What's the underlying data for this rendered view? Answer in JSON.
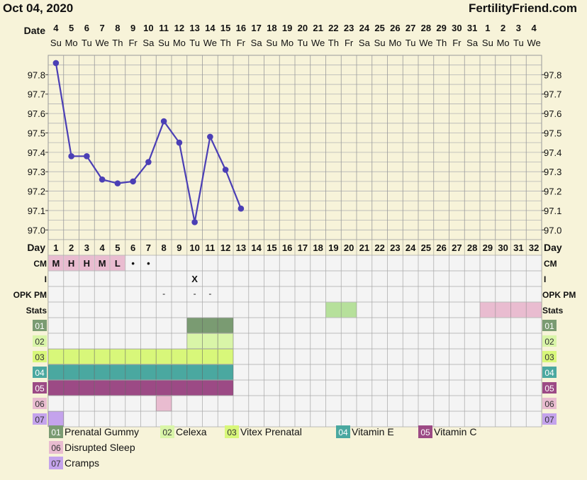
{
  "header": {
    "date": "Oct 04, 2020",
    "site": "FertilityFriend.com"
  },
  "chart_data": {
    "type": "line",
    "title": "",
    "row_labels": {
      "date": "Date",
      "day": "Day",
      "cm": "CM",
      "i": "I",
      "opk": "OPK PM",
      "stats": "Stats"
    },
    "date_numbers": [
      "4",
      "5",
      "6",
      "7",
      "8",
      "9",
      "10",
      "11",
      "12",
      "13",
      "14",
      "15",
      "16",
      "17",
      "18",
      "19",
      "20",
      "21",
      "22",
      "23",
      "24",
      "25",
      "26",
      "27",
      "28",
      "29",
      "30",
      "31",
      "1",
      "2",
      "3",
      "4"
    ],
    "weekdays": [
      "Su",
      "Mo",
      "Tu",
      "We",
      "Th",
      "Fr",
      "Sa",
      "Su",
      "Mo",
      "Tu",
      "We",
      "Th",
      "Fr",
      "Sa",
      "Su",
      "Mo",
      "Tu",
      "We",
      "Th",
      "Fr",
      "Sa",
      "Su",
      "Mo",
      "Tu",
      "We",
      "Th",
      "Fr",
      "Sa",
      "Su",
      "Mo",
      "Tu",
      "We"
    ],
    "cycle_days": [
      "1",
      "2",
      "3",
      "4",
      "5",
      "6",
      "7",
      "8",
      "9",
      "10",
      "11",
      "12",
      "13",
      "14",
      "15",
      "16",
      "17",
      "18",
      "19",
      "20",
      "21",
      "22",
      "23",
      "24",
      "25",
      "26",
      "27",
      "28",
      "29",
      "30",
      "31",
      "32"
    ],
    "y_ticks": [
      "97.8",
      "97.7",
      "97.6",
      "97.5",
      "97.4",
      "97.3",
      "97.2",
      "97.1",
      "97.0"
    ],
    "ylim": [
      96.95,
      97.9
    ],
    "series": [
      {
        "values": [
          97.86,
          97.38,
          97.38,
          97.26,
          97.24,
          97.25,
          97.35,
          97.56,
          97.45,
          97.04,
          97.48,
          97.31,
          97.11
        ]
      }
    ],
    "cm": [
      "M",
      "H",
      "H",
      "M",
      "L",
      "•",
      "•",
      "",
      "",
      "",
      "",
      "",
      "",
      "",
      "",
      "",
      "",
      "",
      "",
      "",
      "",
      "",
      "",
      "",
      "",
      "",
      "",
      "",
      "",
      "",
      "",
      ""
    ],
    "i": [
      "",
      "",
      "",
      "",
      "",
      "",
      "",
      "",
      "",
      "X",
      "",
      "",
      "",
      "",
      "",
      "",
      "",
      "",
      "",
      "",
      "",
      "",
      "",
      "",
      "",
      "",
      "",
      "",
      "",
      "",
      "",
      ""
    ],
    "opk": [
      "",
      "",
      "",
      "",
      "",
      "",
      "",
      "-",
      "",
      "-",
      "-",
      "",
      "",
      "",
      "",
      "",
      "",
      "",
      "",
      "",
      "",
      "",
      "",
      "",
      "",
      "",
      "",
      "",
      "",
      "",
      "",
      ""
    ],
    "stats_days": [
      19,
      20,
      29,
      30,
      31,
      32
    ],
    "supplements": [
      {
        "code": "01",
        "name": "Prenatal Gummy",
        "color": "#7a9b72",
        "days": [
          10,
          11,
          12
        ]
      },
      {
        "code": "02",
        "name": "Celexa",
        "color": "#d9f5a8",
        "days": [
          10,
          11,
          12
        ]
      },
      {
        "code": "03",
        "name": "Vitex Prenatal",
        "color": "#d8f77a",
        "days": [
          1,
          2,
          3,
          4,
          5,
          6,
          7,
          8,
          9,
          10,
          11,
          12
        ]
      },
      {
        "code": "04",
        "name": "Vitamin E",
        "color": "#4aa8a0",
        "days": [
          1,
          2,
          3,
          4,
          5,
          6,
          7,
          8,
          9,
          10,
          11,
          12
        ]
      },
      {
        "code": "05",
        "name": "Vitamin C",
        "color": "#9c4a85",
        "days": [
          1,
          2,
          3,
          4,
          5,
          6,
          7,
          8,
          9,
          10,
          11,
          12
        ]
      },
      {
        "code": "06",
        "name": "Disrupted Sleep",
        "color": "#e9bcd0",
        "days": [
          8
        ]
      },
      {
        "code": "07",
        "name": "Cramps",
        "color": "#c4a3ec",
        "days": [
          1
        ]
      }
    ],
    "colors": {
      "line": "#4b3fb5",
      "cm_bg": "#e9bcd0",
      "stats": "#b6e09b",
      "stats2": "#e9bcd0",
      "grid": "#9a9a9a",
      "plot_bg": "#f7f3d9",
      "row_bg": "#f4f4f4"
    }
  }
}
